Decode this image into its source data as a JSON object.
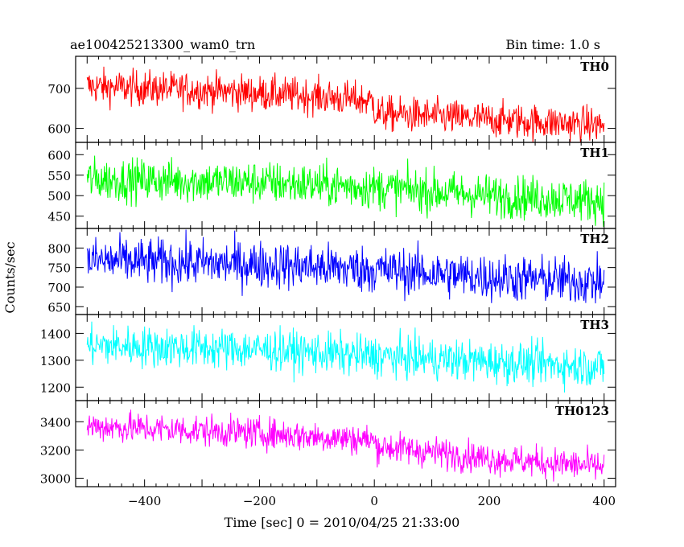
{
  "header": {
    "left_title": "ae100425213300_wam0_trn",
    "right_title": "Bin time: 1.0 s"
  },
  "chart_data": {
    "type": "line",
    "xlabel": "Time [sec] 0 = 2010/04/25 21:33:00",
    "ylabel": "Counts/sec",
    "xlim": [
      -520,
      420
    ],
    "x_ticks": [
      -400,
      -200,
      0,
      200,
      400
    ],
    "x_tick_labels": [
      "−400",
      "−200",
      "0",
      "200",
      "400"
    ],
    "panels": [
      {
        "name": "TH0",
        "color": "#ff0000",
        "ylim": [
          565,
          780
        ],
        "y_ticks": [
          600,
          700
        ],
        "y_tick_labels": [
          "600",
          "700"
        ],
        "trend": [
          {
            "t": -500,
            "mean": 705
          },
          {
            "t": -300,
            "mean": 695
          },
          {
            "t": -100,
            "mean": 680
          },
          {
            "t": -1,
            "mean": 668
          },
          {
            "t": 1,
            "mean": 638
          },
          {
            "t": 200,
            "mean": 622
          },
          {
            "t": 400,
            "mean": 608
          }
        ],
        "noise_sd": 22
      },
      {
        "name": "TH1",
        "color": "#00ff00",
        "ylim": [
          420,
          630
        ],
        "y_ticks": [
          450,
          500,
          550,
          600
        ],
        "y_tick_labels": [
          "450",
          "500",
          "550",
          "600"
        ],
        "trend": [
          {
            "t": -500,
            "mean": 540
          },
          {
            "t": -200,
            "mean": 532
          },
          {
            "t": 0,
            "mean": 520
          },
          {
            "t": 200,
            "mean": 500
          },
          {
            "t": 400,
            "mean": 488
          }
        ],
        "noise_sd": 26
      },
      {
        "name": "TH2",
        "color": "#0000ff",
        "ylim": [
          630,
          850
        ],
        "y_ticks": [
          650,
          700,
          750,
          800
        ],
        "y_tick_labels": [
          "650",
          "700",
          "750",
          "800"
        ],
        "trend": [
          {
            "t": -500,
            "mean": 768
          },
          {
            "t": -200,
            "mean": 758
          },
          {
            "t": 0,
            "mean": 745
          },
          {
            "t": 200,
            "mean": 725
          },
          {
            "t": 400,
            "mean": 712
          }
        ],
        "noise_sd": 30
      },
      {
        "name": "TH3",
        "color": "#00ffff",
        "ylim": [
          1150,
          1470
        ],
        "y_ticks": [
          1200,
          1300,
          1400
        ],
        "y_tick_labels": [
          "1200",
          "1300",
          "1400"
        ],
        "trend": [
          {
            "t": -500,
            "mean": 1355
          },
          {
            "t": -200,
            "mean": 1340
          },
          {
            "t": 0,
            "mean": 1315
          },
          {
            "t": 200,
            "mean": 1295
          },
          {
            "t": 400,
            "mean": 1275
          }
        ],
        "noise_sd": 38
      },
      {
        "name": "TH0123",
        "color": "#ff00ff",
        "ylim": [
          2940,
          3550
        ],
        "y_ticks": [
          3000,
          3200,
          3400
        ],
        "y_tick_labels": [
          "3000",
          "3200",
          "3400"
        ],
        "trend": [
          {
            "t": -500,
            "mean": 3370
          },
          {
            "t": -200,
            "mean": 3320
          },
          {
            "t": -1,
            "mean": 3270
          },
          {
            "t": 1,
            "mean": 3230
          },
          {
            "t": 200,
            "mean": 3140
          },
          {
            "t": 400,
            "mean": 3080
          }
        ],
        "noise_sd": 55
      }
    ]
  }
}
